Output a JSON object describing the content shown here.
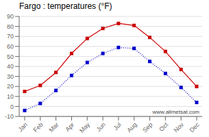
{
  "chart_data": {
    "type": "line",
    "title": "Fargo : temperatures (°F)",
    "categories": [
      "Jan",
      "Feb",
      "Mar",
      "Apr",
      "May",
      "Jun",
      "Jul",
      "Aug",
      "Sep",
      "Oct",
      "Nov",
      "Dec"
    ],
    "series": [
      {
        "color": "#cc0000",
        "values": [
          15,
          21,
          34,
          53,
          68,
          78,
          83,
          81,
          69,
          55,
          37,
          20
        ],
        "line_style": "solid",
        "marker": "square"
      },
      {
        "color": "#0000cc",
        "values": [
          -4,
          3,
          16,
          31,
          44,
          53,
          59,
          58,
          45,
          33,
          19,
          4
        ],
        "line_style": "dotted",
        "marker": "square"
      }
    ],
    "ylim": [
      -10,
      90
    ],
    "yticks": [
      -10,
      0,
      10,
      20,
      30,
      40,
      50,
      60,
      70,
      80,
      90
    ],
    "grid": "y",
    "annotations": [
      {
        "text": "www.allmetsat.com"
      }
    ]
  }
}
